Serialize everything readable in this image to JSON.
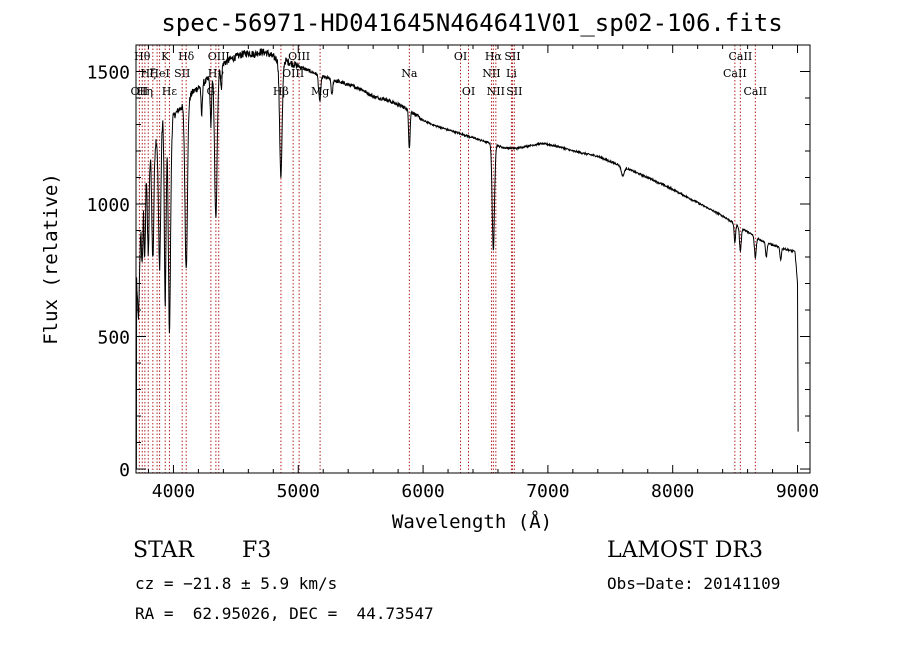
{
  "chart_data": {
    "type": "line",
    "title": "spec-56971-HD041645N464641V01_sp02-106.fits",
    "xlabel": "Wavelength (Å)",
    "ylabel": "Flux (relative)",
    "xlim": [
      3700,
      9100
    ],
    "ylim": [
      -15,
      1600
    ],
    "xticks": [
      4000,
      5000,
      6000,
      7000,
      8000,
      9000
    ],
    "yticks": [
      0,
      500,
      1000,
      1500
    ],
    "xtick_labels": [
      "4000",
      "5000",
      "6000",
      "7000",
      "8000",
      "9000"
    ],
    "ytick_labels": [
      "0",
      "500",
      "1000",
      "1500"
    ],
    "line_color": "#000000",
    "marker_color": "#b22222",
    "continuum": [
      [
        3705,
        820
      ],
      [
        3730,
        950
      ],
      [
        3760,
        1130
      ],
      [
        3790,
        1180
      ],
      [
        3820,
        1200
      ],
      [
        3850,
        1230
      ],
      [
        3880,
        1270
      ],
      [
        3910,
        1320
      ],
      [
        3940,
        1340
      ],
      [
        3970,
        1300
      ],
      [
        4000,
        1330
      ],
      [
        4050,
        1360
      ],
      [
        4102,
        1380
      ],
      [
        4150,
        1420
      ],
      [
        4200,
        1440
      ],
      [
        4250,
        1460
      ],
      [
        4300,
        1480
      ],
      [
        4340,
        1500
      ],
      [
        4400,
        1530
      ],
      [
        4450,
        1545
      ],
      [
        4500,
        1555
      ],
      [
        4550,
        1565
      ],
      [
        4600,
        1570
      ],
      [
        4650,
        1565
      ],
      [
        4700,
        1575
      ],
      [
        4750,
        1570
      ],
      [
        4800,
        1555
      ],
      [
        4860,
        1535
      ],
      [
        4900,
        1540
      ],
      [
        4950,
        1530
      ],
      [
        5000,
        1520
      ],
      [
        5100,
        1500
      ],
      [
        5200,
        1480
      ],
      [
        5300,
        1465
      ],
      [
        5400,
        1450
      ],
      [
        5500,
        1435
      ],
      [
        5600,
        1405
      ],
      [
        5700,
        1395
      ],
      [
        5800,
        1375
      ],
      [
        5890,
        1355
      ],
      [
        6000,
        1315
      ],
      [
        6100,
        1295
      ],
      [
        6200,
        1280
      ],
      [
        6300,
        1265
      ],
      [
        6400,
        1250
      ],
      [
        6500,
        1235
      ],
      [
        6563,
        1225
      ],
      [
        6650,
        1212
      ],
      [
        6750,
        1210
      ],
      [
        6850,
        1220
      ],
      [
        6950,
        1228
      ],
      [
        7000,
        1225
      ],
      [
        7100,
        1215
      ],
      [
        7200,
        1200
      ],
      [
        7300,
        1190
      ],
      [
        7400,
        1180
      ],
      [
        7500,
        1160
      ],
      [
        7600,
        1142
      ],
      [
        7700,
        1120
      ],
      [
        7800,
        1100
      ],
      [
        7900,
        1078
      ],
      [
        8000,
        1055
      ],
      [
        8100,
        1030
      ],
      [
        8200,
        1005
      ],
      [
        8300,
        980
      ],
      [
        8400,
        955
      ],
      [
        8500,
        925
      ],
      [
        8600,
        895
      ],
      [
        8700,
        865
      ],
      [
        8800,
        845
      ],
      [
        8900,
        830
      ],
      [
        8980,
        820
      ],
      [
        9000,
        700
      ],
      [
        9005,
        140
      ]
    ],
    "absorption": [
      {
        "wave": 3720,
        "depth": 320,
        "width": 10
      },
      {
        "wave": 3750,
        "depth": 300,
        "width": 6
      },
      {
        "wave": 3770,
        "depth": 360,
        "width": 6
      },
      {
        "wave": 3798,
        "depth": 380,
        "width": 7
      },
      {
        "wave": 3835,
        "depth": 420,
        "width": 8
      },
      {
        "wave": 3889,
        "depth": 520,
        "width": 9
      },
      {
        "wave": 3934,
        "depth": 720,
        "width": 7
      },
      {
        "wave": 3968,
        "depth": 780,
        "width": 9
      },
      {
        "wave": 4102,
        "depth": 620,
        "width": 10
      },
      {
        "wave": 4226,
        "depth": 120,
        "width": 5
      },
      {
        "wave": 4300,
        "depth": 180,
        "width": 6
      },
      {
        "wave": 4340,
        "depth": 560,
        "width": 10
      },
      {
        "wave": 4383,
        "depth": 90,
        "width": 5
      },
      {
        "wave": 4861,
        "depth": 430,
        "width": 10
      },
      {
        "wave": 5172,
        "depth": 100,
        "width": 8
      },
      {
        "wave": 5270,
        "depth": 60,
        "width": 6
      },
      {
        "wave": 5890,
        "depth": 140,
        "width": 6
      },
      {
        "wave": 6563,
        "depth": 400,
        "width": 9
      },
      {
        "wave": 7600,
        "depth": 35,
        "width": 12
      },
      {
        "wave": 8498,
        "depth": 70,
        "width": 6
      },
      {
        "wave": 8542,
        "depth": 90,
        "width": 7
      },
      {
        "wave": 8662,
        "depth": 80,
        "width": 7
      },
      {
        "wave": 8750,
        "depth": 55,
        "width": 6
      },
      {
        "wave": 8865,
        "depth": 45,
        "width": 6
      }
    ],
    "line_markers": [
      {
        "wave": 3727,
        "label": "OII",
        "row": 3
      },
      {
        "wave": 3750,
        "label": "Hθ",
        "row": 1
      },
      {
        "wave": 3771,
        "label": "Hη",
        "row": 3
      },
      {
        "wave": 3798,
        "label": "Hζ",
        "row": 2
      },
      {
        "wave": 3835,
        "label": "",
        "row": 0
      },
      {
        "wave": 3869,
        "label": "",
        "row": 0
      },
      {
        "wave": 3889,
        "label": "HeI",
        "row": 2
      },
      {
        "wave": 3934,
        "label": "K",
        "row": 1
      },
      {
        "wave": 3968,
        "label": "Hε",
        "row": 3
      },
      {
        "wave": 4102,
        "label": "Hδ",
        "row": 1
      },
      {
        "wave": 4070,
        "label": "SII",
        "row": 2
      },
      {
        "wave": 4300,
        "label": "G",
        "row": 3
      },
      {
        "wave": 4340,
        "label": "Hγ",
        "row": 2
      },
      {
        "wave": 4363,
        "label": "OIII",
        "row": 1
      },
      {
        "wave": 4861,
        "label": "Hβ",
        "row": 3
      },
      {
        "wave": 4959,
        "label": "OIII",
        "row": 2
      },
      {
        "wave": 5007,
        "label": "OIII",
        "row": 1
      },
      {
        "wave": 5175,
        "label": "Mg",
        "row": 3
      },
      {
        "wave": 5890,
        "label": "Na",
        "row": 2
      },
      {
        "wave": 6300,
        "label": "OI",
        "row": 1
      },
      {
        "wave": 6364,
        "label": "OI",
        "row": 3
      },
      {
        "wave": 6548,
        "label": "NII",
        "row": 2
      },
      {
        "wave": 6563,
        "label": "Hα",
        "row": 1
      },
      {
        "wave": 6583,
        "label": "NII",
        "row": 3
      },
      {
        "wave": 6708,
        "label": "Li",
        "row": 2
      },
      {
        "wave": 6716,
        "label": "SII",
        "row": 1
      },
      {
        "wave": 6731,
        "label": "SII",
        "row": 3
      },
      {
        "wave": 8498,
        "label": "CaII",
        "row": 2
      },
      {
        "wave": 8542,
        "label": "CaII",
        "row": 1
      },
      {
        "wave": 8662,
        "label": "CaII",
        "row": 3
      }
    ]
  },
  "info": {
    "class": "STAR",
    "subclass": "F3",
    "survey": "LAMOST DR3",
    "cz": "cz = −21.8 ± 5.9 km/s",
    "obs_date": "Obs−Date: 20141109",
    "coords": "RA =  62.95026, DEC =  44.73547"
  }
}
